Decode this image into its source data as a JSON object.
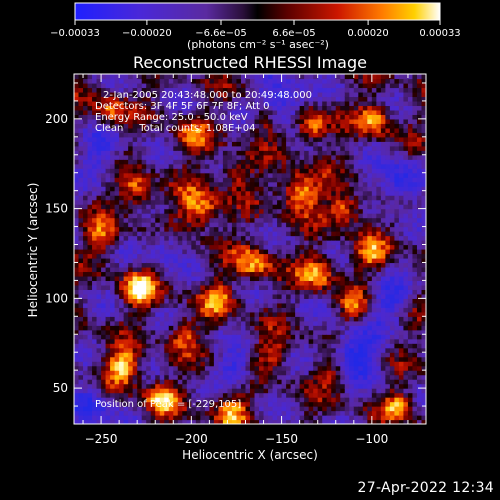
{
  "chart_data": {
    "type": "heatmap",
    "title": "Reconstructed RHESSI Image",
    "xlabel": "Heliocentric X (arcsec)",
    "ylabel": "Heliocentric Y (arcsec)",
    "xlim": [
      -265,
      -70
    ],
    "ylim": [
      30,
      225
    ],
    "x_ticks": [
      -250,
      -200,
      -150,
      -100
    ],
    "y_ticks": [
      50,
      100,
      150,
      200
    ],
    "x_tick_labels": [
      "−250",
      "−200",
      "−150",
      "−100"
    ],
    "y_tick_labels": [
      "50",
      "100",
      "150",
      "200"
    ],
    "annotations": [
      "2-Jan-2005 20:43:48.000 to 20:49:48.000",
      "Detectors: 3F 4F 5F 6F 7F 8F; Att 0",
      "Energy Range: 25.0 - 50.0 keV",
      "Clean     Total counts: 1.08E+04"
    ],
    "peak_label": "Position of Peak = [-229,105]",
    "peak": [
      -229,
      105
    ],
    "colorbar": {
      "unit_label": "(photons cm⁻² s⁻¹ asec⁻²)",
      "range": [
        -0.00033,
        0.00033
      ],
      "tick_labels": [
        "−0.00033",
        "−0.00020",
        "−6.6e−05",
        "6.6e−05",
        "0.00020",
        "0.00033"
      ],
      "tick_values": [
        -0.00033,
        -0.0002,
        -6.6e-05,
        6.6e-05,
        0.0002,
        0.00033
      ]
    },
    "grid": false
  },
  "footer_date": "27-Apr-2022 12:34"
}
